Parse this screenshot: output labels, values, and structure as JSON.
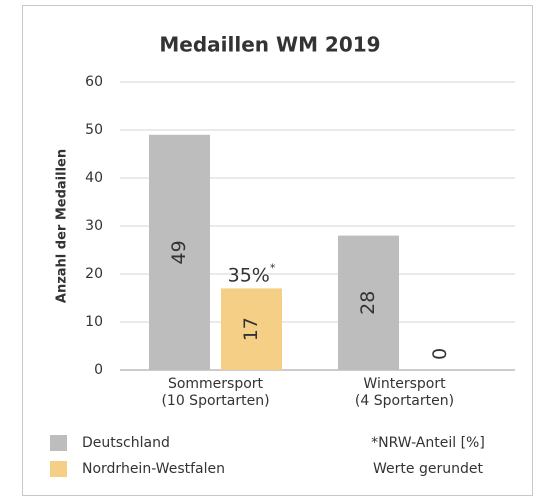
{
  "chart_data": {
    "type": "bar",
    "title": "Medaillen WM 2019",
    "y_label": "Anzahl der Medaillen",
    "categories": [
      "Sommersport\n(10 Sportarten)",
      "Wintersport\n(4 Sportarten)"
    ],
    "series": [
      {
        "name": "Deutschland",
        "color": "#bdbdbd",
        "values": [
          49,
          28
        ]
      },
      {
        "name": "Nordrhein-Westfalen",
        "color": "#f5cf86",
        "values": [
          17,
          0
        ]
      }
    ],
    "ylim": [
      0,
      60
    ],
    "yticks": [
      0,
      10,
      20,
      30,
      40,
      50,
      60
    ],
    "grid": true,
    "annotation": {
      "text": "35%",
      "marker": "*"
    },
    "footnotes": [
      "*NRW-Anteil [%]",
      "Werte gerundet"
    ]
  }
}
